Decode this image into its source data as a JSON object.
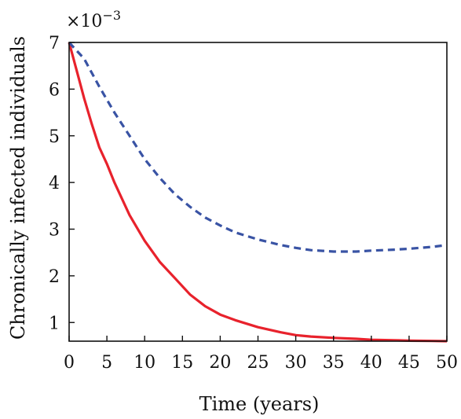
{
  "chart_data": {
    "type": "line",
    "xlabel": "Time (years)",
    "ylabel": "Chronically infected individuals",
    "y_multiplier_base": "×10",
    "y_multiplier_exp": "−3",
    "xlim": [
      0,
      50
    ],
    "ylim": [
      0.6,
      7
    ],
    "x_ticks": [
      0,
      5,
      10,
      15,
      20,
      25,
      30,
      35,
      40,
      45,
      50
    ],
    "y_ticks": [
      1,
      2,
      3,
      4,
      5,
      6,
      7
    ],
    "grid": false,
    "series": [
      {
        "color": "#e8222c",
        "style": "solid",
        "x": [
          0,
          1,
          2,
          3,
          4,
          5,
          6,
          8,
          10,
          12,
          14,
          16,
          18,
          20,
          22,
          25,
          28,
          30,
          32,
          35,
          38,
          40,
          43,
          45,
          48,
          50
        ],
        "y": [
          7.0,
          6.4,
          5.8,
          5.25,
          4.75,
          4.4,
          4.0,
          3.3,
          2.75,
          2.3,
          1.95,
          1.6,
          1.35,
          1.17,
          1.05,
          0.9,
          0.79,
          0.73,
          0.7,
          0.67,
          0.65,
          0.63,
          0.62,
          0.61,
          0.605,
          0.6
        ]
      },
      {
        "color": "#3953a4",
        "style": "dashed",
        "x": [
          0,
          2,
          4,
          6,
          8,
          10,
          12,
          14,
          16,
          18,
          20,
          22,
          25,
          28,
          30,
          32,
          35,
          38,
          40,
          43,
          45,
          48,
          50
        ],
        "y": [
          7.0,
          6.65,
          6.05,
          5.5,
          5.0,
          4.5,
          4.1,
          3.75,
          3.48,
          3.25,
          3.08,
          2.93,
          2.78,
          2.66,
          2.6,
          2.55,
          2.52,
          2.52,
          2.54,
          2.56,
          2.58,
          2.62,
          2.66
        ]
      }
    ]
  }
}
